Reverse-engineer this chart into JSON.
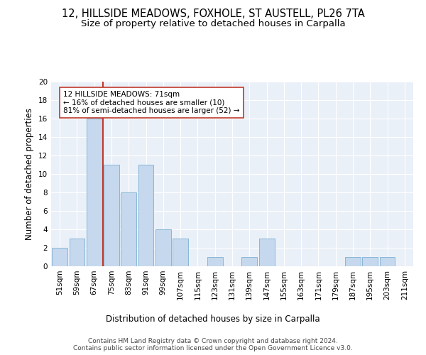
{
  "title_line1": "12, HILLSIDE MEADOWS, FOXHOLE, ST AUSTELL, PL26 7TA",
  "title_line2": "Size of property relative to detached houses in Carpalla",
  "xlabel": "Distribution of detached houses by size in Carpalla",
  "ylabel": "Number of detached properties",
  "categories": [
    "51sqm",
    "59sqm",
    "67sqm",
    "75sqm",
    "83sqm",
    "91sqm",
    "99sqm",
    "107sqm",
    "115sqm",
    "123sqm",
    "131sqm",
    "139sqm",
    "147sqm",
    "155sqm",
    "163sqm",
    "171sqm",
    "179sqm",
    "187sqm",
    "195sqm",
    "203sqm",
    "211sqm"
  ],
  "values": [
    2,
    3,
    16,
    11,
    8,
    11,
    4,
    3,
    0,
    1,
    0,
    1,
    3,
    0,
    0,
    0,
    0,
    1,
    1,
    1,
    0
  ],
  "bar_color": "#c5d8ed",
  "bar_edge_color": "#7bafd4",
  "vline_pos": 2.5,
  "vline_color": "#c0392b",
  "annotation_box_text": "12 HILLSIDE MEADOWS: 71sqm\n← 16% of detached houses are smaller (10)\n81% of semi-detached houses are larger (52) →",
  "ylim": [
    0,
    20
  ],
  "yticks": [
    0,
    2,
    4,
    6,
    8,
    10,
    12,
    14,
    16,
    18,
    20
  ],
  "background_color": "#eaf0f8",
  "footer_text": "Contains HM Land Registry data © Crown copyright and database right 2024.\nContains public sector information licensed under the Open Government Licence v3.0.",
  "title_fontsize": 10.5,
  "subtitle_fontsize": 9.5,
  "axis_label_fontsize": 8.5,
  "tick_fontsize": 7.5,
  "annotation_fontsize": 7.5,
  "footer_fontsize": 6.5
}
